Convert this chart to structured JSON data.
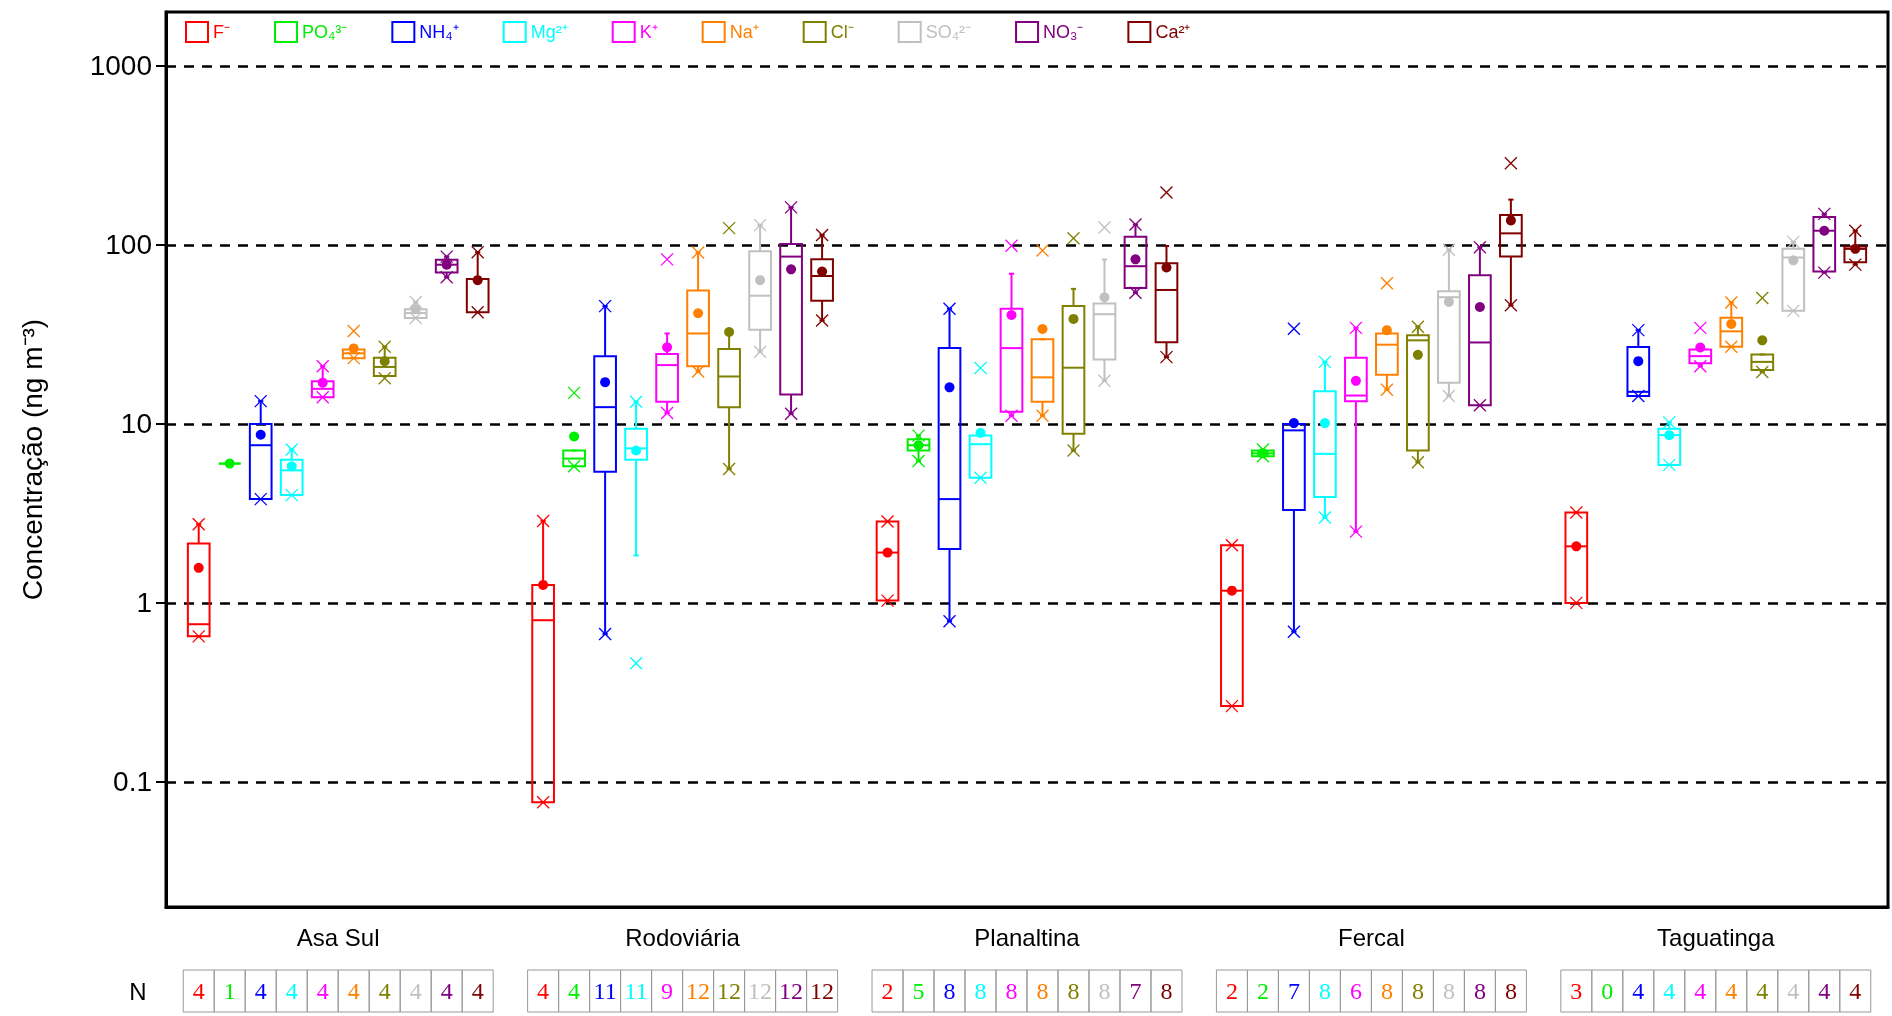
{
  "chart_data": {
    "type": "box",
    "ylabel": "Concentração (ng m⁻³)",
    "categories": [
      "Asa Sul",
      "Rodoviária",
      "Planaltina",
      "Fercal",
      "Taguatinga"
    ],
    "log": true,
    "ylim": [
      0.02,
      2000
    ],
    "yticks": [
      0.1,
      1,
      10,
      100,
      1000
    ],
    "grid": "y",
    "legend": "top left",
    "annotations": [
      "N"
    ],
    "series": [
      {
        "name": "F⁻",
        "color": "#ff0000",
        "value_labels": [
          "4",
          "4",
          "2",
          "2",
          "3"
        ],
        "boxes": [
          {
            "low": 0.65,
            "q1": 0.65,
            "median": 0.76,
            "q3": 2.15,
            "high": 2.75,
            "mean": 1.57,
            "outliers": [
              0.65,
              2.75
            ]
          },
          {
            "low": 0.077,
            "q1": 0.077,
            "median": 0.8,
            "q3": 1.26,
            "high": 2.87,
            "mean": 1.26,
            "outliers": [
              0.077,
              2.87
            ]
          },
          {
            "low": 1.03,
            "q1": 1.03,
            "median": 1.91,
            "q3": 2.85,
            "high": 2.85,
            "mean": 1.91,
            "outliers": [
              1.03,
              2.85
            ]
          },
          {
            "low": 0.265,
            "q1": 0.265,
            "median": 1.17,
            "q3": 2.1,
            "high": 2.1,
            "mean": 1.17,
            "outliers": [
              0.265,
              2.1
            ]
          },
          {
            "low": 1.0,
            "q1": 1.0,
            "median": 2.07,
            "q3": 3.2,
            "high": 3.2,
            "mean": 2.07,
            "outliers": [
              1.0,
              3.2
            ]
          }
        ]
      },
      {
        "name": "PO₄³⁻",
        "color": "#00ee00",
        "value_labels": [
          "1",
          "4",
          "5",
          "2",
          "0"
        ],
        "boxes": [
          {
            "low": 6,
            "q1": 6,
            "median": 6,
            "q3": 6,
            "high": 6,
            "mean": 6
          },
          {
            "low": 5.8,
            "q1": 5.8,
            "median": 6.4,
            "q3": 7.1,
            "high": 7.1,
            "mean": 8.5,
            "outliers": [
              5.8,
              14.9
            ]
          },
          {
            "low": 6.2,
            "q1": 7.1,
            "median": 7.6,
            "q3": 8.2,
            "high": 8.6,
            "mean": 7.6,
            "outliers": [
              6.2,
              8.6
            ]
          },
          {
            "low": 6.6,
            "q1": 6.6,
            "median": 6.85,
            "q3": 7.1,
            "high": 7.2,
            "mean": 6.85,
            "outliers": [
              6.6,
              7.2
            ]
          },
          null
        ]
      },
      {
        "name": "NH₄⁺",
        "color": "#0000ff",
        "value_labels": [
          "4",
          "11",
          "8",
          "7",
          "4"
        ],
        "boxes": [
          {
            "low": 3.8,
            "q1": 3.8,
            "median": 7.6,
            "q3": 10,
            "high": 13.4,
            "mean": 8.7,
            "outliers": [
              3.8,
              13.4
            ]
          },
          {
            "low": 0.67,
            "q1": 5.4,
            "median": 12.4,
            "q3": 23.9,
            "high": 45.5,
            "mean": 17.1,
            "outliers": [
              0.67,
              45.5
            ]
          },
          {
            "low": 0.79,
            "q1": 2.0,
            "median": 3.8,
            "q3": 26.5,
            "high": 44,
            "mean": 16,
            "outliers": [
              0.79,
              44
            ]
          },
          {
            "low": 0.69,
            "q1": 3.3,
            "median": 9.2,
            "q3": 10,
            "high": 10,
            "mean": 10.1,
            "outliers": [
              0.69,
              34
            ]
          },
          {
            "low": 14.3,
            "q1": 14.3,
            "median": 15.1,
            "q3": 26.9,
            "high": 33.4,
            "mean": 22.4,
            "outliers": [
              14.3,
              33.4
            ]
          }
        ]
      },
      {
        "name": "Mg²⁺",
        "color": "#00ffff",
        "value_labels": [
          "4",
          "11",
          "8",
          "8",
          "4"
        ],
        "boxes": [
          {
            "low": 4.0,
            "q1": 4.0,
            "median": 5.5,
            "q3": 6.3,
            "high": 7.2,
            "mean": 5.8,
            "outliers": [
              4.0,
              7.2
            ]
          },
          {
            "low": 1.84,
            "q1": 6.3,
            "median": 7.3,
            "q3": 9.4,
            "high": 13.3,
            "mean": 7.1,
            "outliers": [
              0.46,
              13.3
            ]
          },
          {
            "low": 5.0,
            "q1": 5.0,
            "median": 7.7,
            "q3": 8.6,
            "high": 8.6,
            "mean": 8.9,
            "outliers": [
              5.0,
              20.5
            ]
          },
          {
            "low": 3.0,
            "q1": 3.9,
            "median": 6.8,
            "q3": 15.2,
            "high": 22.2,
            "mean": 10.1,
            "outliers": [
              3.0,
              22.2
            ]
          },
          {
            "low": 5.9,
            "q1": 5.9,
            "median": 8.65,
            "q3": 9.4,
            "high": 10.2,
            "mean": 8.65,
            "outliers": [
              5.9,
              10.2
            ]
          }
        ]
      },
      {
        "name": "K⁺",
        "color": "#ff00ff",
        "value_labels": [
          "4",
          "9",
          "8",
          "6",
          "4"
        ],
        "boxes": [
          {
            "low": 14.1,
            "q1": 14.1,
            "median": 15.7,
            "q3": 17.3,
            "high": 21,
            "mean": 17,
            "outliers": [
              14.1,
              21
            ]
          },
          {
            "low": 11.5,
            "q1": 13.3,
            "median": 21.3,
            "q3": 24.6,
            "high": 32,
            "mean": 26.8,
            "outliers": [
              11.5,
              83
            ]
          },
          {
            "low": 11.1,
            "q1": 11.7,
            "median": 26.5,
            "q3": 44,
            "high": 69,
            "mean": 40.6,
            "outliers": [
              11.1,
              99
            ]
          },
          {
            "low": 2.5,
            "q1": 13.4,
            "median": 14.4,
            "q3": 23.4,
            "high": 34.4,
            "mean": 17.4,
            "outliers": [
              2.5,
              34.4
            ]
          },
          {
            "low": 21,
            "q1": 21.8,
            "median": 23.9,
            "q3": 26,
            "high": 26,
            "mean": 26.7,
            "outliers": [
              21,
              34.4
            ]
          }
        ]
      },
      {
        "name": "Na⁺",
        "color": "#ff8000",
        "value_labels": [
          "4",
          "12",
          "8",
          "8",
          "4"
        ],
        "boxes": [
          {
            "low": 23.3,
            "q1": 23.3,
            "median": 24.8,
            "q3": 26,
            "high": 26,
            "mean": 26.4,
            "outliers": [
              23.3,
              33
            ]
          },
          {
            "low": 19.6,
            "q1": 21,
            "median": 32,
            "q3": 55.6,
            "high": 90.6,
            "mean": 41.5,
            "outliers": [
              19.6,
              90.6
            ]
          },
          {
            "low": 11.1,
            "q1": 13.3,
            "median": 18.2,
            "q3": 29.7,
            "high": 29.7,
            "mean": 33.9,
            "outliers": [
              11.1,
              93
            ]
          },
          {
            "low": 15.5,
            "q1": 18.8,
            "median": 27.7,
            "q3": 32,
            "high": 32,
            "mean": 33.4,
            "outliers": [
              15.5,
              61
            ]
          },
          {
            "low": 27,
            "q1": 27,
            "median": 32.9,
            "q3": 39.2,
            "high": 47.7,
            "mean": 36.2,
            "outliers": [
              27,
              47.7
            ]
          }
        ]
      },
      {
        "name": "Cl⁻",
        "color": "#808000",
        "value_labels": [
          "4",
          "12",
          "8",
          "8",
          "4"
        ],
        "boxes": [
          {
            "low": 18.5,
            "q1": 18.5,
            "median": 20.8,
            "q3": 23.4,
            "high": 27,
            "mean": 22.4,
            "outliers": [
              18,
              27
            ]
          },
          {
            "low": 5.6,
            "q1": 12.4,
            "median": 18.4,
            "q3": 26.2,
            "high": 32.6,
            "mean": 32.6,
            "outliers": [
              5.6,
              124
            ]
          },
          {
            "low": 7.1,
            "q1": 8.8,
            "median": 20.6,
            "q3": 45.6,
            "high": 56.8,
            "mean": 38.6,
            "outliers": [
              7.1,
              109
            ]
          },
          {
            "low": 6.1,
            "q1": 7.1,
            "median": 29.3,
            "q3": 31.3,
            "high": 34.9,
            "mean": 24.3,
            "outliers": [
              6.1,
              34.9
            ]
          },
          {
            "low": 19.5,
            "q1": 20,
            "median": 22.2,
            "q3": 24.4,
            "high": 24.4,
            "mean": 29.3,
            "outliers": [
              19.5,
              50.5
            ]
          }
        ]
      },
      {
        "name": "SO₄²⁻",
        "color": "#c0c0c0",
        "value_labels": [
          "4",
          "12",
          "8",
          "8",
          "4"
        ],
        "boxes": [
          {
            "low": 39,
            "q1": 39,
            "median": 41.6,
            "q3": 43.7,
            "high": 48,
            "mean": 43.7,
            "outliers": [
              39,
              48
            ]
          },
          {
            "low": 25.3,
            "q1": 33.6,
            "median": 52,
            "q3": 92,
            "high": 129,
            "mean": 63.5,
            "outliers": [
              25.3,
              129
            ]
          },
          {
            "low": 17.4,
            "q1": 22.9,
            "median": 41,
            "q3": 47,
            "high": 82.8,
            "mean": 51,
            "outliers": [
              17.4,
              125
            ]
          },
          {
            "low": 14.3,
            "q1": 17,
            "median": 51,
            "q3": 55,
            "high": 94,
            "mean": 48,
            "outliers": [
              14.3,
              94
            ]
          },
          {
            "low": 42.8,
            "q1": 42.8,
            "median": 85,
            "q3": 95,
            "high": 104,
            "mean": 82,
            "outliers": [
              42.8,
              104
            ]
          }
        ]
      },
      {
        "name": "NO₃⁻",
        "color": "#800080",
        "value_labels": [
          "4",
          "12",
          "7",
          "8",
          "4"
        ],
        "boxes": [
          {
            "low": 66,
            "q1": 70,
            "median": 77.5,
            "q3": 82.6,
            "high": 86,
            "mean": 77.5,
            "outliers": [
              66,
              86
            ]
          },
          {
            "low": 11.4,
            "q1": 14.6,
            "median": 86,
            "q3": 101,
            "high": 162,
            "mean": 73,
            "outliers": [
              11.4,
              162
            ]
          },
          {
            "low": 54,
            "q1": 57.5,
            "median": 76,
            "q3": 111,
            "high": 130,
            "mean": 83,
            "outliers": [
              54,
              130
            ]
          },
          {
            "low": 12.7,
            "q1": 12.7,
            "median": 28.5,
            "q3": 67.6,
            "high": 97,
            "mean": 45,
            "outliers": [
              12.7,
              97
            ]
          },
          {
            "low": 70,
            "q1": 71,
            "median": 120,
            "q3": 143,
            "high": 149,
            "mean": 120,
            "outliers": [
              70,
              149
            ]
          }
        ]
      },
      {
        "name": "Ca²⁺",
        "color": "#800000",
        "value_labels": [
          "4",
          "12",
          "8",
          "8",
          "4"
        ],
        "boxes": [
          {
            "low": 42,
            "q1": 42,
            "median": 64.5,
            "q3": 64.5,
            "high": 91,
            "mean": 63.5,
            "outliers": [
              42,
              91
            ]
          },
          {
            "low": 37.8,
            "q1": 48.8,
            "median": 67,
            "q3": 83,
            "high": 113.6,
            "mean": 71,
            "outliers": [
              37.8,
              113.6
            ]
          },
          {
            "low": 23.6,
            "q1": 28.6,
            "median": 56,
            "q3": 79,
            "high": 98.6,
            "mean": 74.8,
            "outliers": [
              23.6,
              196
            ]
          },
          {
            "low": 46,
            "q1": 86,
            "median": 116,
            "q3": 147,
            "high": 179,
            "mean": 137,
            "outliers": [
              46,
              286
            ]
          },
          {
            "low": 77.6,
            "q1": 80,
            "median": 95,
            "q3": 98,
            "high": 120,
            "mean": 95,
            "outliers": [
              77.6,
              120
            ]
          }
        ]
      }
    ]
  }
}
